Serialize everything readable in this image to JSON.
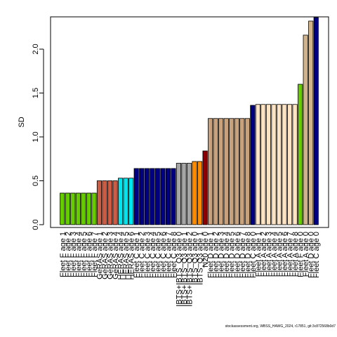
{
  "chart_data": {
    "type": "bar",
    "ylabel": "SD",
    "yticks": [
      0.0,
      0.5,
      1.0,
      1.5,
      2.0
    ],
    "ytick_labels": [
      "0.0",
      "0.5",
      "1.0",
      "1.5",
      "2.0"
    ],
    "ylim": [
      0,
      2.35
    ],
    "grid": false,
    "categories": [
      "Fleet F age 1",
      "Fleet F age 2",
      "Fleet F age 3",
      "Fleet F age 4",
      "Fleet F age 5",
      "Fleet F age 6",
      "Fleet F age 7",
      "GeRAS age 1",
      "GeRAS age 2",
      "GeRAS age 3",
      "GeRAS age 4",
      "HERAS age 4",
      "HERAS age 5",
      "HERAS age 6",
      "Fleet C age 1",
      "Fleet C age 2",
      "Fleet C age 3",
      "Fleet C age 4",
      "Fleet C age 5",
      "Fleet C age 6",
      "Fleet C age 7",
      "Fleet C age 8",
      "IBTS+IBTS_Q3 age 0",
      "IBTS+IBTS_Q3 age 1",
      "IBTS+IBTS_Q3 age 2",
      "IBTS_Q3 age 0",
      "IBTS_Q3 age 1",
      "N20 age 0",
      "Fleet D age 1",
      "Fleet D age 2",
      "Fleet D age 3",
      "Fleet D age 4",
      "Fleet D age 5",
      "Fleet D age 6",
      "Fleet D age 7",
      "Fleet D age 8",
      "Fleet C age 0",
      "Fleet A age 1",
      "Fleet A age 2",
      "Fleet A age 3",
      "Fleet A age 4",
      "Fleet A age 5",
      "Fleet A age 6",
      "Fleet A age 7",
      "Fleet A age 8",
      "Fleet F age 0",
      "Fleet A age 0",
      "Fleet D age 0",
      "Fleet C age 0"
    ],
    "values": [
      0.36,
      0.36,
      0.36,
      0.36,
      0.36,
      0.36,
      0.36,
      0.5,
      0.5,
      0.5,
      0.5,
      0.53,
      0.53,
      0.53,
      0.64,
      0.64,
      0.64,
      0.64,
      0.64,
      0.64,
      0.64,
      0.64,
      0.7,
      0.7,
      0.7,
      0.72,
      0.72,
      0.84,
      1.21,
      1.21,
      1.21,
      1.21,
      1.21,
      1.21,
      1.21,
      1.21,
      1.36,
      1.37,
      1.37,
      1.37,
      1.37,
      1.37,
      1.37,
      1.37,
      1.37,
      1.6,
      2.16,
      2.32,
      2.36
    ],
    "colors": [
      "#66cc00",
      "#66cc00",
      "#66cc00",
      "#66cc00",
      "#66cc00",
      "#66cc00",
      "#66cc00",
      "#cd5c45",
      "#cd5c45",
      "#cd5c45",
      "#cd5c45",
      "#00e5ee",
      "#00e5ee",
      "#00e5ee",
      "#000080",
      "#000080",
      "#000080",
      "#000080",
      "#000080",
      "#000080",
      "#000080",
      "#000080",
      "#a6a6a6",
      "#a6a6a6",
      "#a6a6a6",
      "#ff8c00",
      "#ff8c00",
      "#8b0000",
      "#c8a27c",
      "#c8a27c",
      "#c8a27c",
      "#c8a27c",
      "#c8a27c",
      "#c8a27c",
      "#c8a27c",
      "#c8a27c",
      "#000080",
      "#ffe4c4",
      "#ffe4c4",
      "#ffe4c4",
      "#ffe4c4",
      "#ffe4c4",
      "#ffe4c4",
      "#ffe4c4",
      "#ffe4c4",
      "#66cc00",
      "#d2b48c",
      "#d2b48c",
      "#000080"
    ]
  },
  "footer": {
    "watermark": "stockassessment.org, WBSS_HAWG_2024, r17851, git:3c872568b0d7"
  }
}
